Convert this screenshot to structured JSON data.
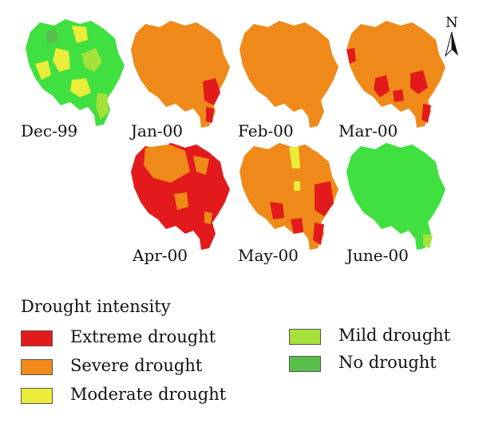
{
  "colors": {
    "extreme": "#e31a1c",
    "severe": "#ef8a1a",
    "moderate": "#ecec3a",
    "mild": "#a6e03a",
    "none": "#58c04a",
    "nodrought_fill": "#3fe03f"
  },
  "maps": [
    {
      "label": "Dec-99",
      "dominant": "none"
    },
    {
      "label": "Jan-00",
      "dominant": "severe"
    },
    {
      "label": "Feb-00",
      "dominant": "severe"
    },
    {
      "label": "Mar-00",
      "dominant": "severe"
    },
    {
      "label": "Apr-00",
      "dominant": "extreme"
    },
    {
      "label": "May-00",
      "dominant": "severe"
    },
    {
      "label": "June-00",
      "dominant": "none"
    }
  ],
  "north_arrow": {
    "label": "N",
    "icon": "north-arrow-icon"
  },
  "legend": {
    "title": "Drought intensity",
    "items": [
      {
        "label": "Extreme drought",
        "class": "extreme"
      },
      {
        "label": "Severe drought",
        "class": "severe"
      },
      {
        "label": "Moderate drought",
        "class": "moderate"
      },
      {
        "label": "Mild drought",
        "class": "mild"
      },
      {
        "label": "No drought",
        "class": "none"
      }
    ]
  }
}
